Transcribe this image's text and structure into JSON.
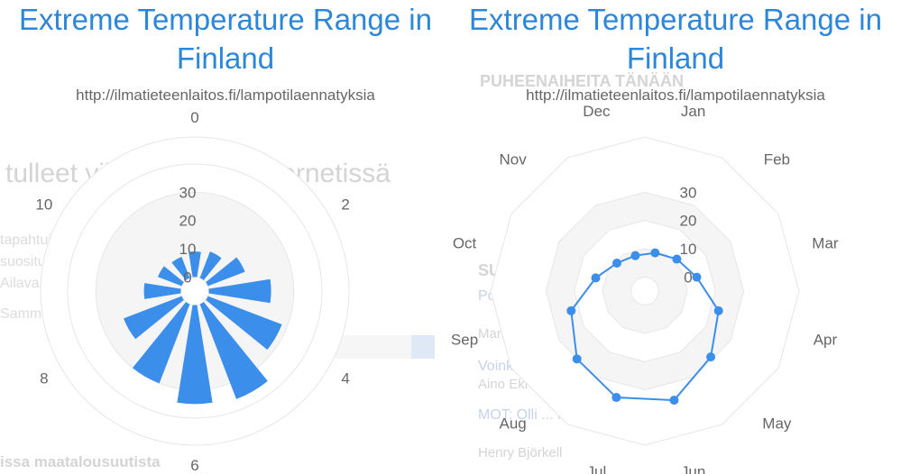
{
  "charts": [
    {
      "title": "Extreme Temperature Range in Finland",
      "subtitle": "http://ilmatieteenlaitos.fi/lampotilaennatyksia"
    },
    {
      "title": "Extreme Temperature Range in Finland",
      "subtitle": "http://ilmatieteenlaitos.fi/lampotilaennatyksia"
    }
  ],
  "chart_data": [
    {
      "type": "bar",
      "polar": true,
      "title": "Extreme Temperature Range in Finland",
      "subtitle": "http://ilmatieteenlaitos.fi/lampotilaennatyksia",
      "angle_ticks": [
        "0",
        "2",
        "4",
        "6",
        "8",
        "10"
      ],
      "angle_tick_values": [
        0,
        2,
        4,
        6,
        8,
        10
      ],
      "angle_range": [
        0,
        12
      ],
      "radial_ticks": [
        "0",
        "10",
        "20",
        "30"
      ],
      "radial_range": [
        -5,
        40
      ],
      "values": [
        9,
        10,
        14,
        22,
        28,
        36,
        35,
        30,
        22,
        13,
        9,
        8
      ],
      "color": "#3b8eea"
    },
    {
      "type": "line",
      "polar": true,
      "title": "Extreme Temperature Range in Finland",
      "subtitle": "http://ilmatieteenlaitos.fi/lampotilaennatyksia",
      "categories": [
        "Jan",
        "Feb",
        "Mar",
        "Apr",
        "May",
        "Jun",
        "Jul",
        "Aug",
        "Sep",
        "Oct",
        "Nov",
        "Dec"
      ],
      "radial_ticks": [
        "0",
        "10",
        "20",
        "30"
      ],
      "radial_range": [
        -5,
        40
      ],
      "values": [
        9,
        11,
        14,
        22,
        28,
        35,
        34,
        29,
        22,
        13,
        9,
        8
      ],
      "color": "#3b8eea"
    }
  ],
  "background": {
    "lines": [
      "tulleet vihanhaukset internetissä",
      "tapahtui sohjalleen ...yhte muualla kuin internetissä",
      "suosituimmat tilikysymykset ... kuinka luotetaan",
      "Ailavaa...",
      "Sammalla",
      "issa maatalousuutista",
      "PUHEENAIHEITA TÄNÄÄN",
      "SUOSITUIMMAT ARTIKKELIT",
      "Poliisin listan ... vihanhaukset internetissä 2017",
      "Manu...",
      "Voinko kuulla ... Suomen Yrittäjiä?",
      "Aino Ekholm",
      "MOT: Olli ... kodinturvaajiksi",
      "Henry Björkell"
    ]
  }
}
